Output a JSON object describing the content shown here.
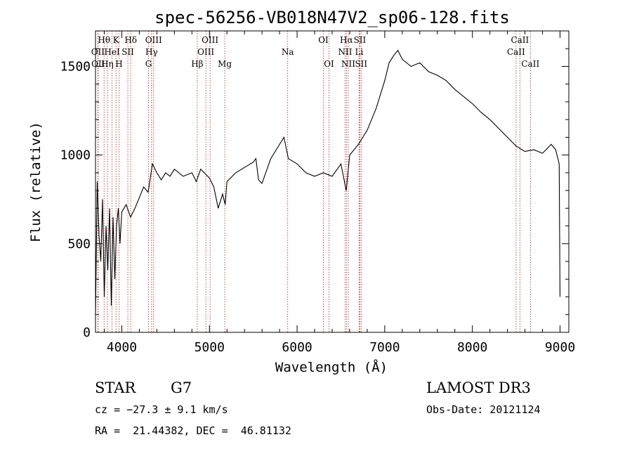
{
  "chart_data": {
    "type": "line",
    "title": "spec-56256-VB018N47V2_sp06-128.fits",
    "xlabel": "Wavelength (Å)",
    "ylabel": "Flux (relative)",
    "xlim": [
      3700,
      9100
    ],
    "ylim": [
      0,
      1700
    ],
    "xticks": [
      4000,
      5000,
      6000,
      7000,
      8000,
      9000
    ],
    "yticks": [
      0,
      500,
      1000,
      1500
    ],
    "series": [
      {
        "name": "flux",
        "x": [
          3700,
          3720,
          3740,
          3760,
          3780,
          3800,
          3820,
          3840,
          3860,
          3880,
          3900,
          3920,
          3940,
          3960,
          3980,
          4000,
          4050,
          4100,
          4150,
          4200,
          4250,
          4300,
          4350,
          4400,
          4450,
          4500,
          4550,
          4600,
          4700,
          4800,
          4850,
          4900,
          5000,
          5050,
          5100,
          5150,
          5180,
          5200,
          5300,
          5400,
          5500,
          5530,
          5560,
          5600,
          5700,
          5800,
          5850,
          5900,
          6000,
          6100,
          6200,
          6300,
          6400,
          6500,
          6560,
          6600,
          6700,
          6800,
          6900,
          7000,
          7050,
          7100,
          7150,
          7200,
          7300,
          7400,
          7500,
          7600,
          7700,
          7800,
          7900,
          8000,
          8100,
          8200,
          8300,
          8400,
          8500,
          8600,
          8700,
          8800,
          8900,
          8950,
          8990,
          9000
        ],
        "y": [
          100,
          850,
          550,
          400,
          750,
          200,
          600,
          350,
          700,
          150,
          650,
          300,
          600,
          700,
          500,
          680,
          720,
          650,
          700,
          760,
          820,
          790,
          950,
          900,
          860,
          900,
          880,
          920,
          880,
          900,
          850,
          920,
          870,
          820,
          700,
          780,
          720,
          850,
          900,
          930,
          960,
          980,
          860,
          840,
          980,
          1060,
          1100,
          980,
          950,
          900,
          880,
          900,
          880,
          950,
          800,
          1000,
          1060,
          1140,
          1260,
          1420,
          1520,
          1560,
          1590,
          1540,
          1500,
          1520,
          1470,
          1450,
          1420,
          1370,
          1330,
          1290,
          1240,
          1200,
          1150,
          1100,
          1050,
          1020,
          1030,
          1010,
          1060,
          1030,
          950,
          200
        ]
      }
    ],
    "lines": [
      {
        "label": "Hθ",
        "x": 3798,
        "row": 0
      },
      {
        "label": "OII",
        "x": 3727,
        "row": 1
      },
      {
        "label": "OII",
        "x": 3730,
        "row": 2
      },
      {
        "label": "Hη",
        "x": 3835,
        "row": 2
      },
      {
        "label": "K",
        "x": 3934,
        "row": 0
      },
      {
        "label": "HeI",
        "x": 3889,
        "row": 1
      },
      {
        "label": "H",
        "x": 3968,
        "row": 2
      },
      {
        "label": "Hδ",
        "x": 4102,
        "row": 0
      },
      {
        "label": "SII",
        "x": 4069,
        "row": 1
      },
      {
        "label": "OIII",
        "x": 4363,
        "row": 0
      },
      {
        "label": "Hγ",
        "x": 4340,
        "row": 1
      },
      {
        "label": "G",
        "x": 4305,
        "row": 2
      },
      {
        "label": "OIII",
        "x": 5007,
        "row": 0
      },
      {
        "label": "OIII",
        "x": 4959,
        "row": 1
      },
      {
        "label": "Hβ",
        "x": 4861,
        "row": 2
      },
      {
        "label": "Mg",
        "x": 5175,
        "row": 2
      },
      {
        "label": "Na",
        "x": 5893,
        "row": 1
      },
      {
        "label": "OI",
        "x": 6300,
        "row": 0
      },
      {
        "label": "OI",
        "x": 6364,
        "row": 2
      },
      {
        "label": "Hα",
        "x": 6563,
        "row": 0
      },
      {
        "label": "NII",
        "x": 6548,
        "row": 1
      },
      {
        "label": "NII",
        "x": 6584,
        "row": 2
      },
      {
        "label": "SII",
        "x": 6716,
        "row": 0
      },
      {
        "label": "Li",
        "x": 6708,
        "row": 1
      },
      {
        "label": "SII",
        "x": 6731,
        "row": 2
      },
      {
        "label": "CaII",
        "x": 8542,
        "row": 0
      },
      {
        "label": "CaII",
        "x": 8498,
        "row": 1
      },
      {
        "label": "CaII",
        "x": 8662,
        "row": 2
      }
    ]
  },
  "info": {
    "class": "STAR",
    "subclass": "G7",
    "cz": "cz = −27.3 ± 9.1 km/s",
    "radec": "RA =  21.44382, DEC =  46.81132",
    "survey": "LAMOST DR3",
    "obsdate": "Obs-Date: 20121124"
  },
  "colors": {
    "line_marker": "#b22222",
    "axis": "#000000"
  }
}
